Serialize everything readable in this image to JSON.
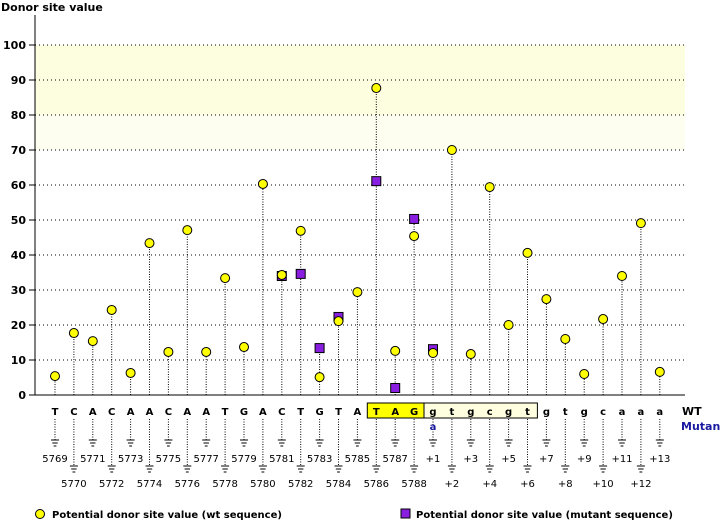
{
  "chart_data": {
    "type": "scatter",
    "ylabel": "Donor site value",
    "ylim": [
      0,
      100
    ],
    "yticks": [
      0,
      10,
      20,
      30,
      40,
      50,
      60,
      70,
      80,
      90,
      100
    ],
    "row_labels": {
      "wt": "WT",
      "mutant": "Mutant"
    },
    "sequence": [
      "T",
      "C",
      "A",
      "C",
      "A",
      "A",
      "C",
      "A",
      "A",
      "T",
      "G",
      "A",
      "C",
      "T",
      "G",
      "T",
      "A",
      "T",
      "A",
      "G",
      "g",
      "t",
      "g",
      "c",
      "g",
      "t",
      "g",
      "t",
      "g",
      "c",
      "a",
      "a",
      "a"
    ],
    "positions": [
      "5769",
      "5770",
      "5771",
      "5772",
      "5773",
      "5774",
      "5775",
      "5776",
      "5777",
      "5778",
      "5779",
      "5780",
      "5781",
      "5782",
      "5783",
      "5784",
      "5785",
      "5786",
      "5787",
      "5788",
      "+1",
      "+2",
      "+3",
      "+4",
      "+5",
      "+6",
      "+7",
      "+8",
      "+9",
      "+10",
      "+11",
      "+12",
      "+13"
    ],
    "mutant_letters": {
      "20": "a"
    },
    "wt_values": [
      5.4,
      17.7,
      15.4,
      24.3,
      6.3,
      43.4,
      12.3,
      47.1,
      12.3,
      33.4,
      13.7,
      60.3,
      34.3,
      46.9,
      5.1,
      21.1,
      29.4,
      87.7,
      12.6,
      45.4,
      12,
      70,
      11.7,
      59.4,
      20,
      40.6,
      27.4,
      16,
      6,
      21.7,
      34,
      49.1,
      6.6
    ],
    "mutant_values": {
      "12": 34,
      "13": 34.6,
      "14": 13.4,
      "15": 22.3,
      "17": 61.1,
      "18": 2,
      "19": 50.3,
      "20": 13.1
    },
    "legend": [
      {
        "label": "Potential donor site value (wt sequence)",
        "color": "#ffff00",
        "shape": "circle"
      },
      {
        "label": "Potential donor site value (mutant sequence)",
        "color": "#8a1ee0",
        "shape": "square"
      }
    ],
    "highlight_bands": [
      {
        "from": 80,
        "to": 100,
        "color": "#fdfde0"
      },
      {
        "from": 70,
        "to": 80,
        "color": "#fefef0"
      }
    ],
    "exon_box_color": "#ffff00",
    "intron_box_color": "#ffffe0"
  }
}
